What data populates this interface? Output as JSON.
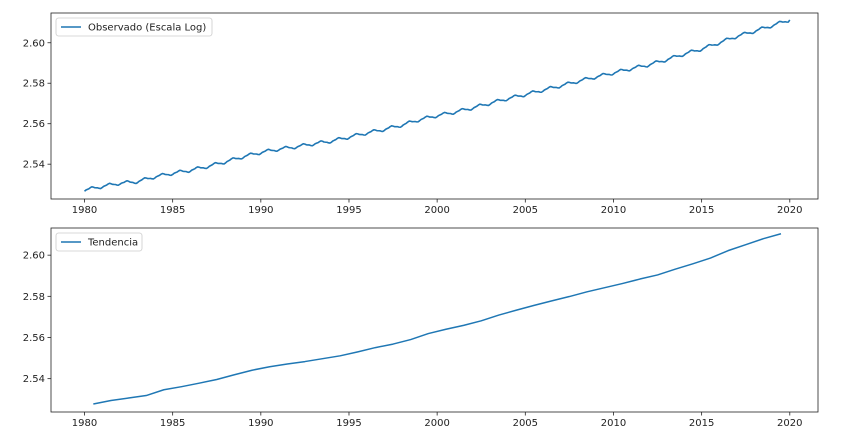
{
  "chart_data": [
    {
      "type": "line",
      "title": "",
      "xlabel": "",
      "ylabel": "",
      "xlim": [
        1978.1,
        2021.6
      ],
      "ylim": [
        2.5228,
        2.6147
      ],
      "x_ticks": [
        1980,
        1985,
        1990,
        1995,
        2000,
        2005,
        2010,
        2015,
        2020
      ],
      "y_ticks": [
        2.54,
        2.56,
        2.58,
        2.6
      ],
      "legend_position": "upper-left",
      "grid": false,
      "series": [
        {
          "name": "Observado (Escala Log)",
          "color": "#1f77b4",
          "seasonal_amplitude": 0.0007,
          "x": [
            1980.0,
            1981.0,
            1982.0,
            1983.0,
            1984.0,
            1985.0,
            1986.0,
            1987.0,
            1988.0,
            1989.0,
            1990.0,
            1991.0,
            1992.0,
            1993.0,
            1994.0,
            1995.0,
            1996.0,
            1997.0,
            1998.0,
            1999.0,
            2000.0,
            2001.0,
            2002.0,
            2003.0,
            2004.0,
            2005.0,
            2006.0,
            2007.0,
            2008.0,
            2009.0,
            2010.0,
            2011.0,
            2012.0,
            2013.0,
            2014.0,
            2015.0,
            2016.0,
            2017.0,
            2018.0,
            2019.0,
            2020.0
          ],
          "values": [
            2.5272,
            2.529,
            2.5306,
            2.5314,
            2.5338,
            2.5355,
            2.537,
            2.5389,
            2.5412,
            2.5437,
            2.5458,
            2.5474,
            2.5486,
            2.5501,
            2.5514,
            2.5534,
            2.5554,
            2.5572,
            2.5593,
            2.562,
            2.564,
            2.5657,
            2.5678,
            2.5701,
            2.5724,
            2.5744,
            2.5766,
            2.5787,
            2.581,
            2.5831,
            2.5851,
            2.5872,
            2.5891,
            2.5916,
            2.5944,
            2.5969,
            2.6,
            2.6032,
            2.6057,
            2.6085,
            2.6113
          ]
        }
      ]
    },
    {
      "type": "line",
      "title": "",
      "xlabel": "",
      "ylabel": "",
      "xlim": [
        1978.1,
        2021.6
      ],
      "ylim": [
        2.5238,
        2.6132
      ],
      "x_ticks": [
        1980,
        1985,
        1990,
        1995,
        2000,
        2005,
        2010,
        2015,
        2020
      ],
      "y_ticks": [
        2.54,
        2.56,
        2.58,
        2.6
      ],
      "legend_position": "upper-left",
      "grid": false,
      "series": [
        {
          "name": "Tendencia",
          "color": "#1f77b4",
          "x": [
            1980.5,
            1981.5,
            1982.5,
            1983.5,
            1984.5,
            1985.5,
            1986.5,
            1987.5,
            1988.5,
            1989.5,
            1990.5,
            1991.5,
            1992.5,
            1993.5,
            1994.5,
            1995.5,
            1996.5,
            1997.5,
            1998.5,
            1999.5,
            2000.5,
            2001.5,
            2002.5,
            2003.5,
            2004.5,
            2005.5,
            2006.5,
            2007.5,
            2008.5,
            2009.5,
            2010.5,
            2011.5,
            2012.5,
            2013.5,
            2014.5,
            2015.5,
            2016.5,
            2017.5,
            2018.5,
            2019.5
          ],
          "values": [
            2.5277,
            2.5294,
            2.5306,
            2.5318,
            2.5346,
            2.5361,
            2.5378,
            2.5396,
            2.5419,
            2.5441,
            2.5458,
            2.5471,
            2.5483,
            2.5497,
            2.5511,
            2.553,
            2.5551,
            2.5568,
            2.559,
            2.5619,
            2.564,
            2.5659,
            2.5681,
            2.5709,
            2.5733,
            2.5756,
            2.5778,
            2.5799,
            2.5822,
            2.5842,
            2.5862,
            2.5884,
            2.5904,
            2.5932,
            2.5958,
            2.5986,
            2.6022,
            2.6051,
            2.608,
            2.6104
          ]
        }
      ]
    }
  ]
}
